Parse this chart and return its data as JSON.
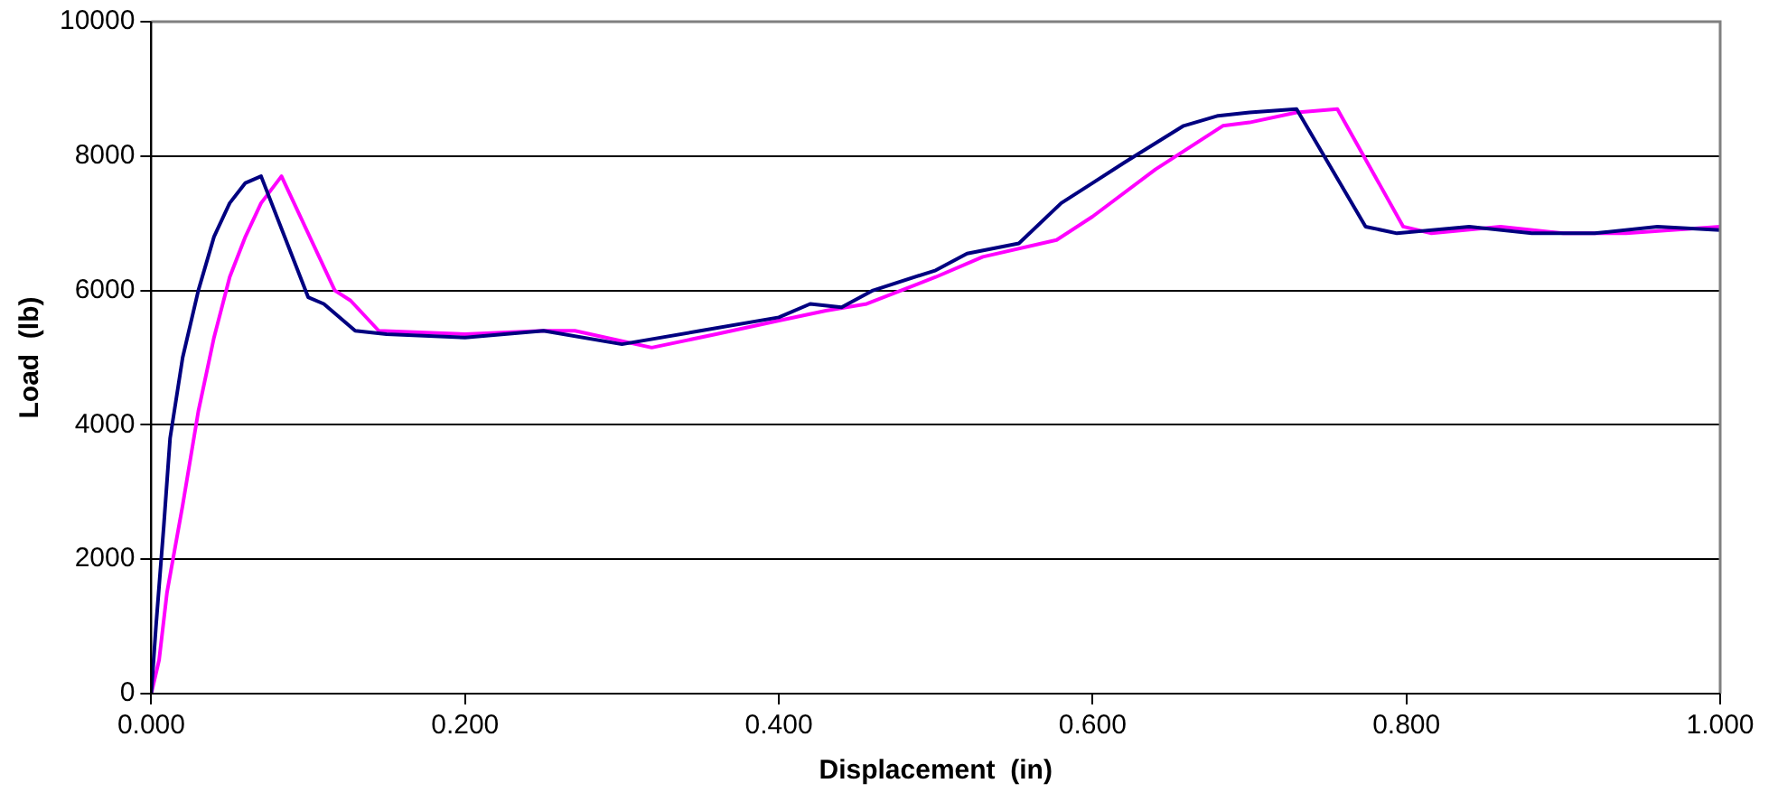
{
  "chart_data": {
    "type": "line",
    "xlabel": "Displacement  (in)",
    "ylabel": "Load  (lb)",
    "xlim": [
      0,
      1
    ],
    "xticks": [
      {
        "value": 0,
        "label": "0.000"
      },
      {
        "value": 0.2,
        "label": "0.200"
      },
      {
        "value": 0.4,
        "label": "0.400"
      },
      {
        "value": 0.6,
        "label": "0.600"
      },
      {
        "value": 0.8,
        "label": "0.800"
      },
      {
        "value": 1,
        "label": "1.000"
      }
    ],
    "ylim": [
      0,
      10000
    ],
    "yticks": [
      0,
      2000,
      4000,
      6000,
      8000,
      10000
    ],
    "grid": "y",
    "legend": false,
    "marker": "none",
    "line_style": "solid",
    "series": [
      {
        "color": "#000080",
        "x": [
          0,
          0.003,
          0.008,
          0.012,
          0.02,
          0.03,
          0.04,
          0.05,
          0.06,
          0.07,
          0.1,
          0.11,
          0.13,
          0.15,
          0.2,
          0.25,
          0.3,
          0.35,
          0.4,
          0.42,
          0.44,
          0.46,
          0.5,
          0.52,
          0.553,
          0.58,
          0.6,
          0.62,
          0.658,
          0.68,
          0.7,
          0.73,
          0.774,
          0.794,
          0.84,
          0.88,
          0.92,
          0.96,
          1.0
        ],
        "values": [
          0,
          1000,
          2500,
          3800,
          5000,
          6000,
          6800,
          7300,
          7600,
          7700,
          5900,
          5800,
          5400,
          5350,
          5300,
          5400,
          5200,
          5400,
          5600,
          5800,
          5750,
          6000,
          6300,
          6550,
          6700,
          7300,
          7600,
          7900,
          8450,
          8600,
          8650,
          8700,
          6950,
          6850,
          6950,
          6850,
          6850,
          6950,
          6900
        ]
      },
      {
        "color": "#ff00ff",
        "x": [
          0,
          0.005,
          0.01,
          0.02,
          0.03,
          0.04,
          0.05,
          0.06,
          0.07,
          0.083,
          0.117,
          0.127,
          0.145,
          0.2,
          0.25,
          0.27,
          0.319,
          0.36,
          0.4,
          0.43,
          0.456,
          0.5,
          0.53,
          0.577,
          0.6,
          0.64,
          0.683,
          0.7,
          0.73,
          0.756,
          0.798,
          0.816,
          0.86,
          0.9,
          0.94,
          1.0
        ],
        "values": [
          0,
          500,
          1500,
          2800,
          4200,
          5300,
          6200,
          6800,
          7300,
          7700,
          6000,
          5850,
          5400,
          5350,
          5400,
          5400,
          5150,
          5350,
          5550,
          5700,
          5800,
          6200,
          6500,
          6750,
          7100,
          7800,
          8450,
          8500,
          8650,
          8700,
          6950,
          6850,
          6950,
          6850,
          6850,
          6950
        ]
      }
    ]
  }
}
